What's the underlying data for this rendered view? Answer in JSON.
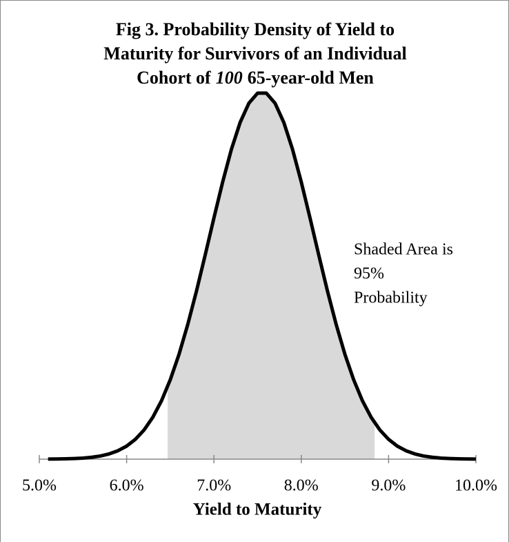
{
  "chart_data": {
    "type": "line",
    "title_lines": [
      "Fig 3.  Probability Density of Yield to",
      "Maturity for Survivors of an Individual",
      [
        "Cohort of",
        "100",
        "65-year-old Men"
      ]
    ],
    "x_label": "Yield to Maturity",
    "annotation_lines": [
      "Shaded Area is",
      "95%",
      "Probability"
    ],
    "x": [
      5.1,
      5.2,
      5.3,
      5.4,
      5.5,
      5.6,
      5.7,
      5.8,
      5.9,
      6.0,
      6.1,
      6.2,
      6.3,
      6.4,
      6.5,
      6.6,
      6.7,
      6.8,
      6.9,
      7.0,
      7.1,
      7.2,
      7.3,
      7.4,
      7.5,
      7.6,
      7.7,
      7.8,
      7.9,
      8.0,
      8.1,
      8.2,
      8.3,
      8.4,
      8.5,
      8.6,
      8.7,
      8.8,
      8.9,
      9.0,
      9.1,
      9.2,
      9.3,
      9.4,
      9.5,
      9.6,
      9.7,
      9.8,
      9.9,
      10.0
    ],
    "series": [
      {
        "color": "#000000",
        "shade_color": "#d9d9d9",
        "values": [
          0.0002,
          0.0003,
          0.0006,
          0.0011,
          0.0019,
          0.0034,
          0.0057,
          0.0095,
          0.0152,
          0.0236,
          0.0359,
          0.0529,
          0.0759,
          0.1059,
          0.1438,
          0.1898,
          0.2438,
          0.3044,
          0.3698,
          0.4368,
          0.5019,
          0.5609,
          0.6096,
          0.6444,
          0.6626,
          0.6626,
          0.6444,
          0.6096,
          0.5609,
          0.5019,
          0.4368,
          0.3698,
          0.3044,
          0.2438,
          0.1898,
          0.1438,
          0.1059,
          0.0759,
          0.0529,
          0.0359,
          0.0236,
          0.0152,
          0.0095,
          0.0057,
          0.0034,
          0.0019,
          0.0011,
          0.0006,
          0.0003,
          0.0002
        ]
      }
    ],
    "shaded_range": [
      6.47,
      8.84
    ],
    "xlim": [
      5,
      10
    ],
    "ylim": [
      0,
      0.7
    ],
    "xticks": [
      {
        "value": 5,
        "label": "5.0%"
      },
      {
        "value": 6,
        "label": "6.0%"
      },
      {
        "value": 7,
        "label": "7.0%"
      },
      {
        "value": 8,
        "label": "8.0%"
      },
      {
        "value": 9,
        "label": "9.0%"
      },
      {
        "value": 10,
        "label": "10.0%"
      }
    ]
  }
}
